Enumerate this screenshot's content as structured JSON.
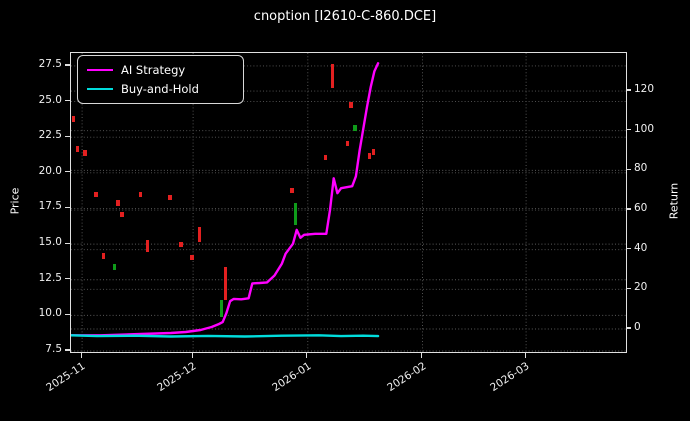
{
  "window": {
    "title": "cnoption [I2610-C-860.DCE]"
  },
  "chart_data": {
    "type": "line",
    "overlay_type": "candlestick",
    "title": "cnoption [I2610-C-860.DCE]",
    "background": "#000000",
    "grid": "dotted",
    "legend_position": "upper-left",
    "x_domain": [
      "2025-10-29",
      "2026-03-28"
    ],
    "x_ticks": [
      {
        "date": "2025-11-01",
        "label": "2025-11"
      },
      {
        "date": "2025-12-01",
        "label": "2025-12"
      },
      {
        "date": "2026-01-01",
        "label": "2026-01"
      },
      {
        "date": "2026-02-01",
        "label": "2026-02"
      },
      {
        "date": "2026-03-01",
        "label": "2026-03"
      }
    ],
    "price_axis": {
      "label": "Price",
      "min": 7.43,
      "max": 28.41,
      "ticks": [
        7.5,
        10.0,
        12.5,
        15.0,
        17.5,
        20.0,
        22.5,
        25.0,
        27.5
      ],
      "tick_labels": [
        "7.5",
        "10.0",
        "12.5",
        "15.0",
        "17.5",
        "20.0",
        "22.5",
        "25.0",
        "27.5"
      ]
    },
    "return_axis": {
      "label": "Return",
      "min": -11.6,
      "max": 139.2,
      "ticks": [
        0,
        20,
        40,
        60,
        80,
        100,
        120
      ],
      "tick_labels": [
        "0",
        "20",
        "40",
        "60",
        "80",
        "100",
        "120"
      ]
    },
    "series": [
      {
        "name": "AI Strategy",
        "color": "#ff00ff",
        "axis": "return",
        "width": 2.4,
        "points": [
          [
            "2025-10-29",
            -3.2
          ],
          [
            "2025-11-06",
            -3.2
          ],
          [
            "2025-11-17",
            -2.5
          ],
          [
            "2025-11-25",
            -2.0
          ],
          [
            "2025-11-29",
            -1.5
          ],
          [
            "2025-12-03",
            -0.5
          ],
          [
            "2025-12-06",
            1.0
          ],
          [
            "2025-12-08",
            2.5
          ],
          [
            "2025-12-09",
            3.5
          ],
          [
            "2025-12-10",
            8.0
          ],
          [
            "2025-12-11",
            14.0
          ],
          [
            "2025-12-12",
            15.2
          ],
          [
            "2025-12-14",
            15.0
          ],
          [
            "2025-12-16",
            15.5
          ],
          [
            "2025-12-17",
            23.0
          ],
          [
            "2025-12-19",
            23.2
          ],
          [
            "2025-12-21",
            23.5
          ],
          [
            "2025-12-23",
            27.0
          ],
          [
            "2025-12-25",
            33.0
          ],
          [
            "2025-12-26",
            38.0
          ],
          [
            "2025-12-28",
            43.0
          ],
          [
            "2025-12-29",
            50.0
          ],
          [
            "2025-12-30",
            46.0
          ],
          [
            "2025-12-31",
            47.5
          ],
          [
            "2026-01-03",
            48.0
          ],
          [
            "2026-01-06",
            48.0
          ],
          [
            "2026-01-07",
            60.0
          ],
          [
            "2026-01-08",
            76.0
          ],
          [
            "2026-01-09",
            68.5
          ],
          [
            "2026-01-10",
            71.0
          ],
          [
            "2026-01-13",
            72.0
          ],
          [
            "2026-01-14",
            77.0
          ],
          [
            "2026-01-15",
            90.0
          ],
          [
            "2026-01-16",
            101.0
          ],
          [
            "2026-01-17",
            112.0
          ],
          [
            "2026-01-18",
            122.0
          ],
          [
            "2026-01-19",
            130.0
          ],
          [
            "2026-01-20",
            134.0
          ]
        ]
      },
      {
        "name": "Buy-and-Hold",
        "color": "#00dcdc",
        "axis": "return",
        "width": 2.4,
        "points": [
          [
            "2025-10-29",
            -3.2
          ],
          [
            "2025-11-05",
            -3.6
          ],
          [
            "2025-11-15",
            -3.4
          ],
          [
            "2025-11-25",
            -3.8
          ],
          [
            "2025-12-05",
            -3.5
          ],
          [
            "2025-12-15",
            -3.8
          ],
          [
            "2025-12-25",
            -3.4
          ],
          [
            "2026-01-04",
            -3.2
          ],
          [
            "2026-01-10",
            -3.6
          ],
          [
            "2026-01-16",
            -3.4
          ],
          [
            "2026-01-20",
            -3.6
          ]
        ]
      }
    ],
    "candles": [
      {
        "date": "2025-10-30",
        "low": 23.5,
        "high": 23.9,
        "color": "red"
      },
      {
        "date": "2025-10-31",
        "low": 21.4,
        "high": 21.8,
        "color": "red"
      },
      {
        "date": "2025-11-02",
        "low": 21.1,
        "high": 21.5,
        "color": "red"
      },
      {
        "date": "2025-11-05",
        "low": 18.2,
        "high": 18.6,
        "color": "red"
      },
      {
        "date": "2025-11-07",
        "low": 13.9,
        "high": 14.3,
        "color": "red"
      },
      {
        "date": "2025-11-10",
        "low": 13.1,
        "high": 13.5,
        "color": "green"
      },
      {
        "date": "2025-11-11",
        "low": 17.6,
        "high": 18.0,
        "color": "red"
      },
      {
        "date": "2025-11-12",
        "low": 16.8,
        "high": 17.2,
        "color": "red"
      },
      {
        "date": "2025-11-17",
        "low": 18.2,
        "high": 18.6,
        "color": "red"
      },
      {
        "date": "2025-11-19",
        "low": 14.4,
        "high": 15.2,
        "color": "red"
      },
      {
        "date": "2025-11-25",
        "low": 18.0,
        "high": 18.4,
        "color": "red"
      },
      {
        "date": "2025-11-28",
        "low": 14.7,
        "high": 15.1,
        "color": "red"
      },
      {
        "date": "2025-12-01",
        "low": 13.8,
        "high": 14.2,
        "color": "red"
      },
      {
        "date": "2025-12-03",
        "low": 15.1,
        "high": 16.1,
        "color": "red"
      },
      {
        "date": "2025-12-09",
        "low": 9.8,
        "high": 11.0,
        "color": "green"
      },
      {
        "date": "2025-12-10",
        "low": 11.0,
        "high": 13.3,
        "color": "red"
      },
      {
        "date": "2025-12-28",
        "low": 18.5,
        "high": 18.9,
        "color": "red"
      },
      {
        "date": "2025-12-29",
        "low": 16.3,
        "high": 17.8,
        "color": "green"
      },
      {
        "date": "2026-01-06",
        "low": 20.8,
        "high": 21.2,
        "color": "red"
      },
      {
        "date": "2026-01-08",
        "low": 25.9,
        "high": 27.6,
        "color": "red"
      },
      {
        "date": "2026-01-12",
        "low": 21.8,
        "high": 22.2,
        "color": "red"
      },
      {
        "date": "2026-01-13",
        "low": 24.5,
        "high": 24.9,
        "color": "red"
      },
      {
        "date": "2026-01-14",
        "low": 22.9,
        "high": 23.3,
        "color": "green"
      },
      {
        "date": "2026-01-18",
        "low": 20.9,
        "high": 21.3,
        "color": "red"
      },
      {
        "date": "2026-01-19",
        "low": 21.2,
        "high": 21.6,
        "color": "red"
      }
    ],
    "colors": {
      "red": "#e32020",
      "green": "#0f9b1a",
      "grid": "#5a5a5a",
      "spine": "#e0e0e0"
    }
  },
  "legend": {
    "items": [
      {
        "label": "AI Strategy",
        "color": "#ff00ff"
      },
      {
        "label": "Buy-and-Hold",
        "color": "#00dcdc"
      }
    ]
  }
}
